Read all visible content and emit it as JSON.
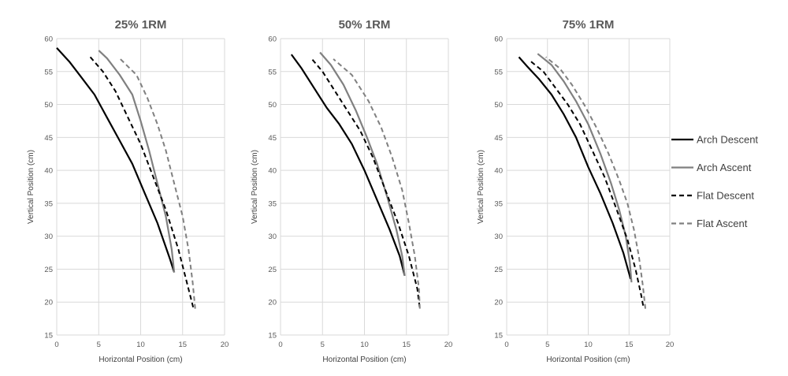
{
  "chart_data": [
    {
      "type": "line",
      "title": "25% 1RM",
      "xlabel": "Horizontal Position (cm)",
      "ylabel": "Vertical Position (cm)",
      "xlim": [
        0,
        20
      ],
      "ylim": [
        15,
        60
      ],
      "xticks": [
        "0",
        "5",
        "10",
        "15",
        "20"
      ],
      "yticks": [
        "15",
        "20",
        "25",
        "30",
        "35",
        "40",
        "45",
        "50",
        "55",
        "60"
      ],
      "grid": true,
      "series": [
        {
          "name": "Arch Descent",
          "points": [
            [
              0.0,
              58.6
            ],
            [
              1.5,
              56.5
            ],
            [
              3.0,
              54.0
            ],
            [
              4.5,
              51.5
            ],
            [
              6.0,
              48.0
            ],
            [
              7.5,
              44.5
            ],
            [
              9.0,
              41.0
            ],
            [
              10.5,
              36.5
            ],
            [
              12.0,
              32.0
            ],
            [
              13.5,
              26.5
            ],
            [
              14.0,
              24.5
            ]
          ]
        },
        {
          "name": "Arch Ascent",
          "points": [
            [
              14.0,
              24.5
            ],
            [
              13.7,
              28.0
            ],
            [
              13.0,
              33.0
            ],
            [
              12.0,
              38.0
            ],
            [
              11.0,
              43.0
            ],
            [
              10.0,
              47.5
            ],
            [
              9.0,
              51.5
            ],
            [
              7.5,
              54.5
            ],
            [
              6.0,
              57.0
            ],
            [
              5.0,
              58.2
            ]
          ]
        },
        {
          "name": "Flat Descent",
          "points": [
            [
              4.0,
              57.2
            ],
            [
              5.5,
              55.0
            ],
            [
              7.0,
              52.0
            ],
            [
              8.5,
              48.0
            ],
            [
              10.0,
              44.0
            ],
            [
              11.5,
              39.0
            ],
            [
              13.0,
              34.0
            ],
            [
              14.5,
              28.0
            ],
            [
              15.5,
              23.0
            ],
            [
              16.3,
              19.0
            ]
          ]
        },
        {
          "name": "Flat Ascent",
          "points": [
            [
              16.5,
              19.0
            ],
            [
              16.2,
              23.0
            ],
            [
              15.7,
              28.0
            ],
            [
              15.0,
              33.0
            ],
            [
              14.0,
              38.0
            ],
            [
              13.0,
              43.0
            ],
            [
              12.0,
              47.0
            ],
            [
              10.8,
              51.0
            ],
            [
              9.5,
              54.5
            ],
            [
              7.5,
              57.0
            ]
          ]
        }
      ]
    },
    {
      "type": "line",
      "title": "50% 1RM",
      "xlabel": "Horizontal Position (cm)",
      "ylabel": "Vertical Position (cm)",
      "xlim": [
        0,
        20
      ],
      "ylim": [
        15,
        60
      ],
      "xticks": [
        "0",
        "5",
        "10",
        "15",
        "20"
      ],
      "yticks": [
        "15",
        "20",
        "25",
        "30",
        "35",
        "40",
        "45",
        "50",
        "55",
        "60"
      ],
      "grid": true,
      "series": [
        {
          "name": "Arch Descent",
          "points": [
            [
              1.3,
              57.6
            ],
            [
              2.5,
              55.5
            ],
            [
              4.0,
              52.5
            ],
            [
              5.5,
              49.5
            ],
            [
              7.0,
              47.0
            ],
            [
              8.5,
              44.0
            ],
            [
              10.0,
              40.0
            ],
            [
              11.5,
              35.5
            ],
            [
              13.0,
              31.0
            ],
            [
              14.2,
              27.0
            ],
            [
              14.8,
              24.0
            ]
          ]
        },
        {
          "name": "Arch Ascent",
          "points": [
            [
              14.8,
              24.0
            ],
            [
              14.5,
              27.0
            ],
            [
              13.8,
              31.0
            ],
            [
              12.7,
              36.0
            ],
            [
              11.5,
              41.0
            ],
            [
              10.3,
              45.0
            ],
            [
              9.0,
              49.0
            ],
            [
              7.5,
              53.0
            ],
            [
              6.0,
              56.0
            ],
            [
              4.7,
              57.9
            ]
          ]
        },
        {
          "name": "Flat Descent",
          "points": [
            [
              3.8,
              56.8
            ],
            [
              5.0,
              55.0
            ],
            [
              6.5,
              52.0
            ],
            [
              8.0,
              49.0
            ],
            [
              9.5,
              46.0
            ],
            [
              11.0,
              42.0
            ],
            [
              12.5,
              37.0
            ],
            [
              14.0,
              32.0
            ],
            [
              15.3,
              27.0
            ],
            [
              16.3,
              22.0
            ],
            [
              16.6,
              19.0
            ]
          ]
        },
        {
          "name": "Flat Ascent",
          "points": [
            [
              16.6,
              19.0
            ],
            [
              16.5,
              22.0
            ],
            [
              16.0,
              27.0
            ],
            [
              15.3,
              32.0
            ],
            [
              14.5,
              37.0
            ],
            [
              13.3,
              42.0
            ],
            [
              12.0,
              46.5
            ],
            [
              10.5,
              50.5
            ],
            [
              8.5,
              54.5
            ],
            [
              6.3,
              56.9
            ]
          ]
        }
      ]
    },
    {
      "type": "line",
      "title": "75% 1RM",
      "xlabel": "Horizontal Position (cm)",
      "ylabel": "Vertical Position (cm)",
      "xlim": [
        0,
        20
      ],
      "ylim": [
        15,
        60
      ],
      "xticks": [
        "0",
        "5",
        "10",
        "15",
        "20"
      ],
      "yticks": [
        "15",
        "20",
        "25",
        "30",
        "35",
        "40",
        "45",
        "50",
        "55",
        "60"
      ],
      "grid": true,
      "series": [
        {
          "name": "Arch Descent",
          "points": [
            [
              1.5,
              57.2
            ],
            [
              2.5,
              55.8
            ],
            [
              4.0,
              53.8
            ],
            [
              5.5,
              51.5
            ],
            [
              7.0,
              48.5
            ],
            [
              8.5,
              45.0
            ],
            [
              10.0,
              40.5
            ],
            [
              11.5,
              36.5
            ],
            [
              13.0,
              32.0
            ],
            [
              14.3,
              27.5
            ],
            [
              15.2,
              23.5
            ]
          ]
        },
        {
          "name": "Arch Ascent",
          "points": [
            [
              15.3,
              23.0
            ],
            [
              15.1,
              26.0
            ],
            [
              14.6,
              30.0
            ],
            [
              13.8,
              34.0
            ],
            [
              12.8,
              38.0
            ],
            [
              11.5,
              42.5
            ],
            [
              10.0,
              47.0
            ],
            [
              8.5,
              50.5
            ],
            [
              7.0,
              53.5
            ],
            [
              5.5,
              56.0
            ],
            [
              3.8,
              57.7
            ]
          ]
        },
        {
          "name": "Flat Descent",
          "points": [
            [
              3.0,
              56.5
            ],
            [
              4.5,
              55.0
            ],
            [
              6.0,
              52.5
            ],
            [
              7.5,
              50.0
            ],
            [
              9.0,
              47.0
            ],
            [
              10.5,
              43.0
            ],
            [
              12.0,
              39.0
            ],
            [
              13.5,
              34.0
            ],
            [
              14.8,
              29.5
            ],
            [
              15.8,
              25.0
            ],
            [
              16.5,
              21.0
            ],
            [
              16.8,
              19.0
            ]
          ]
        },
        {
          "name": "Flat Ascent",
          "points": [
            [
              17.0,
              19.0
            ],
            [
              16.7,
              22.5
            ],
            [
              16.2,
              27.0
            ],
            [
              15.6,
              31.0
            ],
            [
              14.8,
              35.0
            ],
            [
              13.8,
              38.5
            ],
            [
              12.5,
              42.5
            ],
            [
              11.0,
              46.5
            ],
            [
              9.5,
              50.0
            ],
            [
              8.0,
              53.0
            ],
            [
              6.5,
              55.5
            ],
            [
              4.8,
              57.2
            ]
          ]
        }
      ]
    }
  ],
  "legend": {
    "placement": "right",
    "items": [
      {
        "label": "Arch Descent",
        "color": "#000000",
        "dash": "solid"
      },
      {
        "label": "Arch Ascent",
        "color": "#808080",
        "dash": "solid"
      },
      {
        "label": "Flat Descent",
        "color": "#000000",
        "dash": "dashed"
      },
      {
        "label": "Flat Ascent",
        "color": "#808080",
        "dash": "dashed"
      }
    ]
  }
}
